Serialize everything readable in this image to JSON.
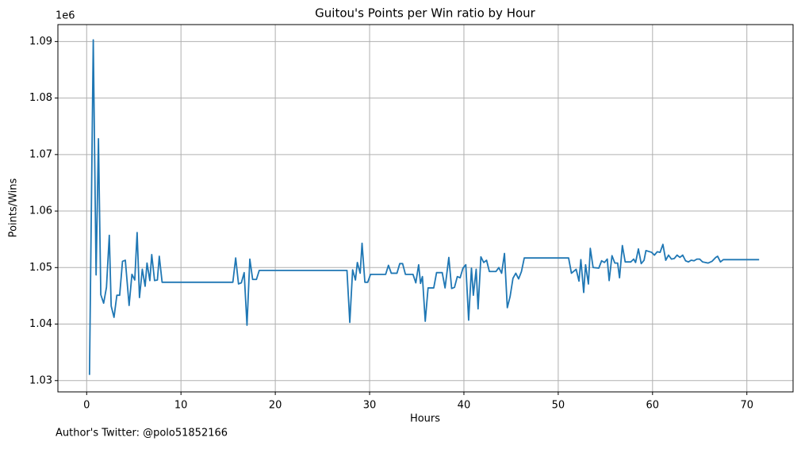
{
  "chart_data": {
    "type": "line",
    "title": "Guitou's Points per Win ratio by Hour",
    "x_label": "Hours",
    "y_label": "Points/Wins",
    "y_offset_label": "1e6",
    "caption": "Author's Twitter: @polo51852166",
    "grid": true,
    "xlim": [
      -3.05,
      74.9
    ],
    "ylim": [
      1028000,
      1093000
    ],
    "xticks": [
      0,
      10,
      20,
      30,
      40,
      50,
      60,
      70
    ],
    "yticks": [
      {
        "value": 1030000,
        "label": "1.03"
      },
      {
        "value": 1040000,
        "label": "1.04"
      },
      {
        "value": 1050000,
        "label": "1.05"
      },
      {
        "value": 1060000,
        "label": "1.06"
      },
      {
        "value": 1070000,
        "label": "1.07"
      },
      {
        "value": 1080000,
        "label": "1.08"
      },
      {
        "value": 1090000,
        "label": "1.09"
      }
    ],
    "x": [
      0.3,
      0.7,
      1.0,
      1.25,
      1.5,
      1.8,
      2.1,
      2.4,
      2.6,
      2.9,
      3.2,
      3.5,
      3.8,
      4.1,
      4.5,
      4.8,
      5.1,
      5.35,
      5.6,
      5.9,
      6.2,
      6.4,
      6.7,
      6.9,
      7.2,
      7.5,
      7.7,
      8.0,
      15.5,
      15.8,
      16.1,
      16.4,
      16.7,
      17.0,
      17.3,
      17.6,
      18.0,
      18.3,
      27.6,
      27.9,
      28.2,
      28.5,
      28.7,
      29.0,
      29.2,
      29.5,
      29.8,
      30.1,
      31.7,
      32.0,
      32.3,
      32.9,
      33.2,
      33.5,
      33.8,
      34.6,
      34.9,
      35.2,
      35.4,
      35.6,
      35.9,
      36.2,
      36.8,
      37.1,
      37.7,
      38.0,
      38.4,
      38.7,
      39.0,
      39.3,
      39.6,
      39.9,
      40.2,
      40.5,
      40.8,
      41.0,
      41.3,
      41.5,
      41.8,
      42.1,
      42.4,
      42.7,
      43.4,
      43.7,
      44.0,
      44.3,
      44.6,
      44.9,
      45.2,
      45.5,
      45.8,
      46.1,
      46.4,
      51.1,
      51.4,
      51.9,
      52.2,
      52.4,
      52.7,
      52.9,
      53.2,
      53.4,
      53.7,
      54.3,
      54.6,
      54.9,
      55.2,
      55.4,
      55.7,
      56.0,
      56.3,
      56.5,
      56.8,
      57.1,
      57.7,
      58.0,
      58.2,
      58.5,
      58.8,
      59.1,
      59.3,
      59.9,
      60.2,
      60.5,
      60.8,
      61.1,
      61.4,
      61.7,
      62.0,
      62.3,
      62.6,
      62.9,
      63.2,
      63.5,
      63.8,
      64.1,
      64.4,
      64.7,
      65.0,
      65.3,
      65.9,
      66.3,
      66.7,
      66.9,
      67.2,
      67.5,
      71.3
    ],
    "series": [
      {
        "name": "Points/Wins",
        "color": "#1f77b4",
        "values": [
          1031000,
          1090300,
          1048700,
          1072800,
          1045200,
          1043700,
          1046500,
          1055700,
          1043200,
          1041200,
          1045100,
          1045100,
          1051100,
          1051300,
          1043300,
          1048800,
          1047800,
          1056200,
          1044700,
          1049700,
          1046700,
          1050800,
          1047700,
          1052300,
          1047700,
          1047800,
          1052000,
          1047400,
          1047400,
          1051700,
          1047100,
          1047300,
          1049100,
          1039800,
          1051500,
          1047900,
          1047900,
          1049500,
          1049500,
          1040300,
          1049600,
          1047800,
          1050900,
          1049000,
          1054300,
          1047400,
          1047400,
          1048800,
          1048800,
          1050400,
          1049000,
          1049000,
          1050700,
          1050700,
          1048800,
          1048800,
          1047300,
          1050500,
          1047200,
          1048400,
          1040500,
          1046400,
          1046400,
          1049100,
          1049100,
          1046400,
          1051800,
          1046300,
          1046500,
          1048400,
          1048200,
          1049900,
          1050500,
          1040700,
          1049900,
          1045100,
          1049700,
          1042700,
          1051900,
          1050900,
          1051300,
          1049300,
          1049300,
          1050000,
          1049000,
          1052500,
          1042900,
          1044900,
          1048100,
          1049000,
          1048000,
          1049300,
          1051700,
          1051700,
          1049000,
          1049700,
          1047600,
          1051400,
          1045600,
          1050500,
          1047100,
          1053400,
          1050000,
          1049900,
          1051200,
          1050900,
          1051500,
          1047700,
          1052100,
          1050800,
          1050800,
          1048200,
          1053900,
          1051000,
          1051000,
          1051500,
          1050900,
          1053300,
          1050700,
          1051300,
          1053000,
          1052700,
          1052200,
          1052800,
          1052700,
          1054100,
          1051300,
          1052200,
          1051500,
          1051600,
          1052200,
          1051800,
          1052200,
          1051200,
          1051000,
          1051300,
          1051200,
          1051500,
          1051500,
          1051000,
          1050800,
          1051100,
          1051800,
          1052000,
          1051000,
          1051400,
          1051400
        ]
      }
    ]
  }
}
